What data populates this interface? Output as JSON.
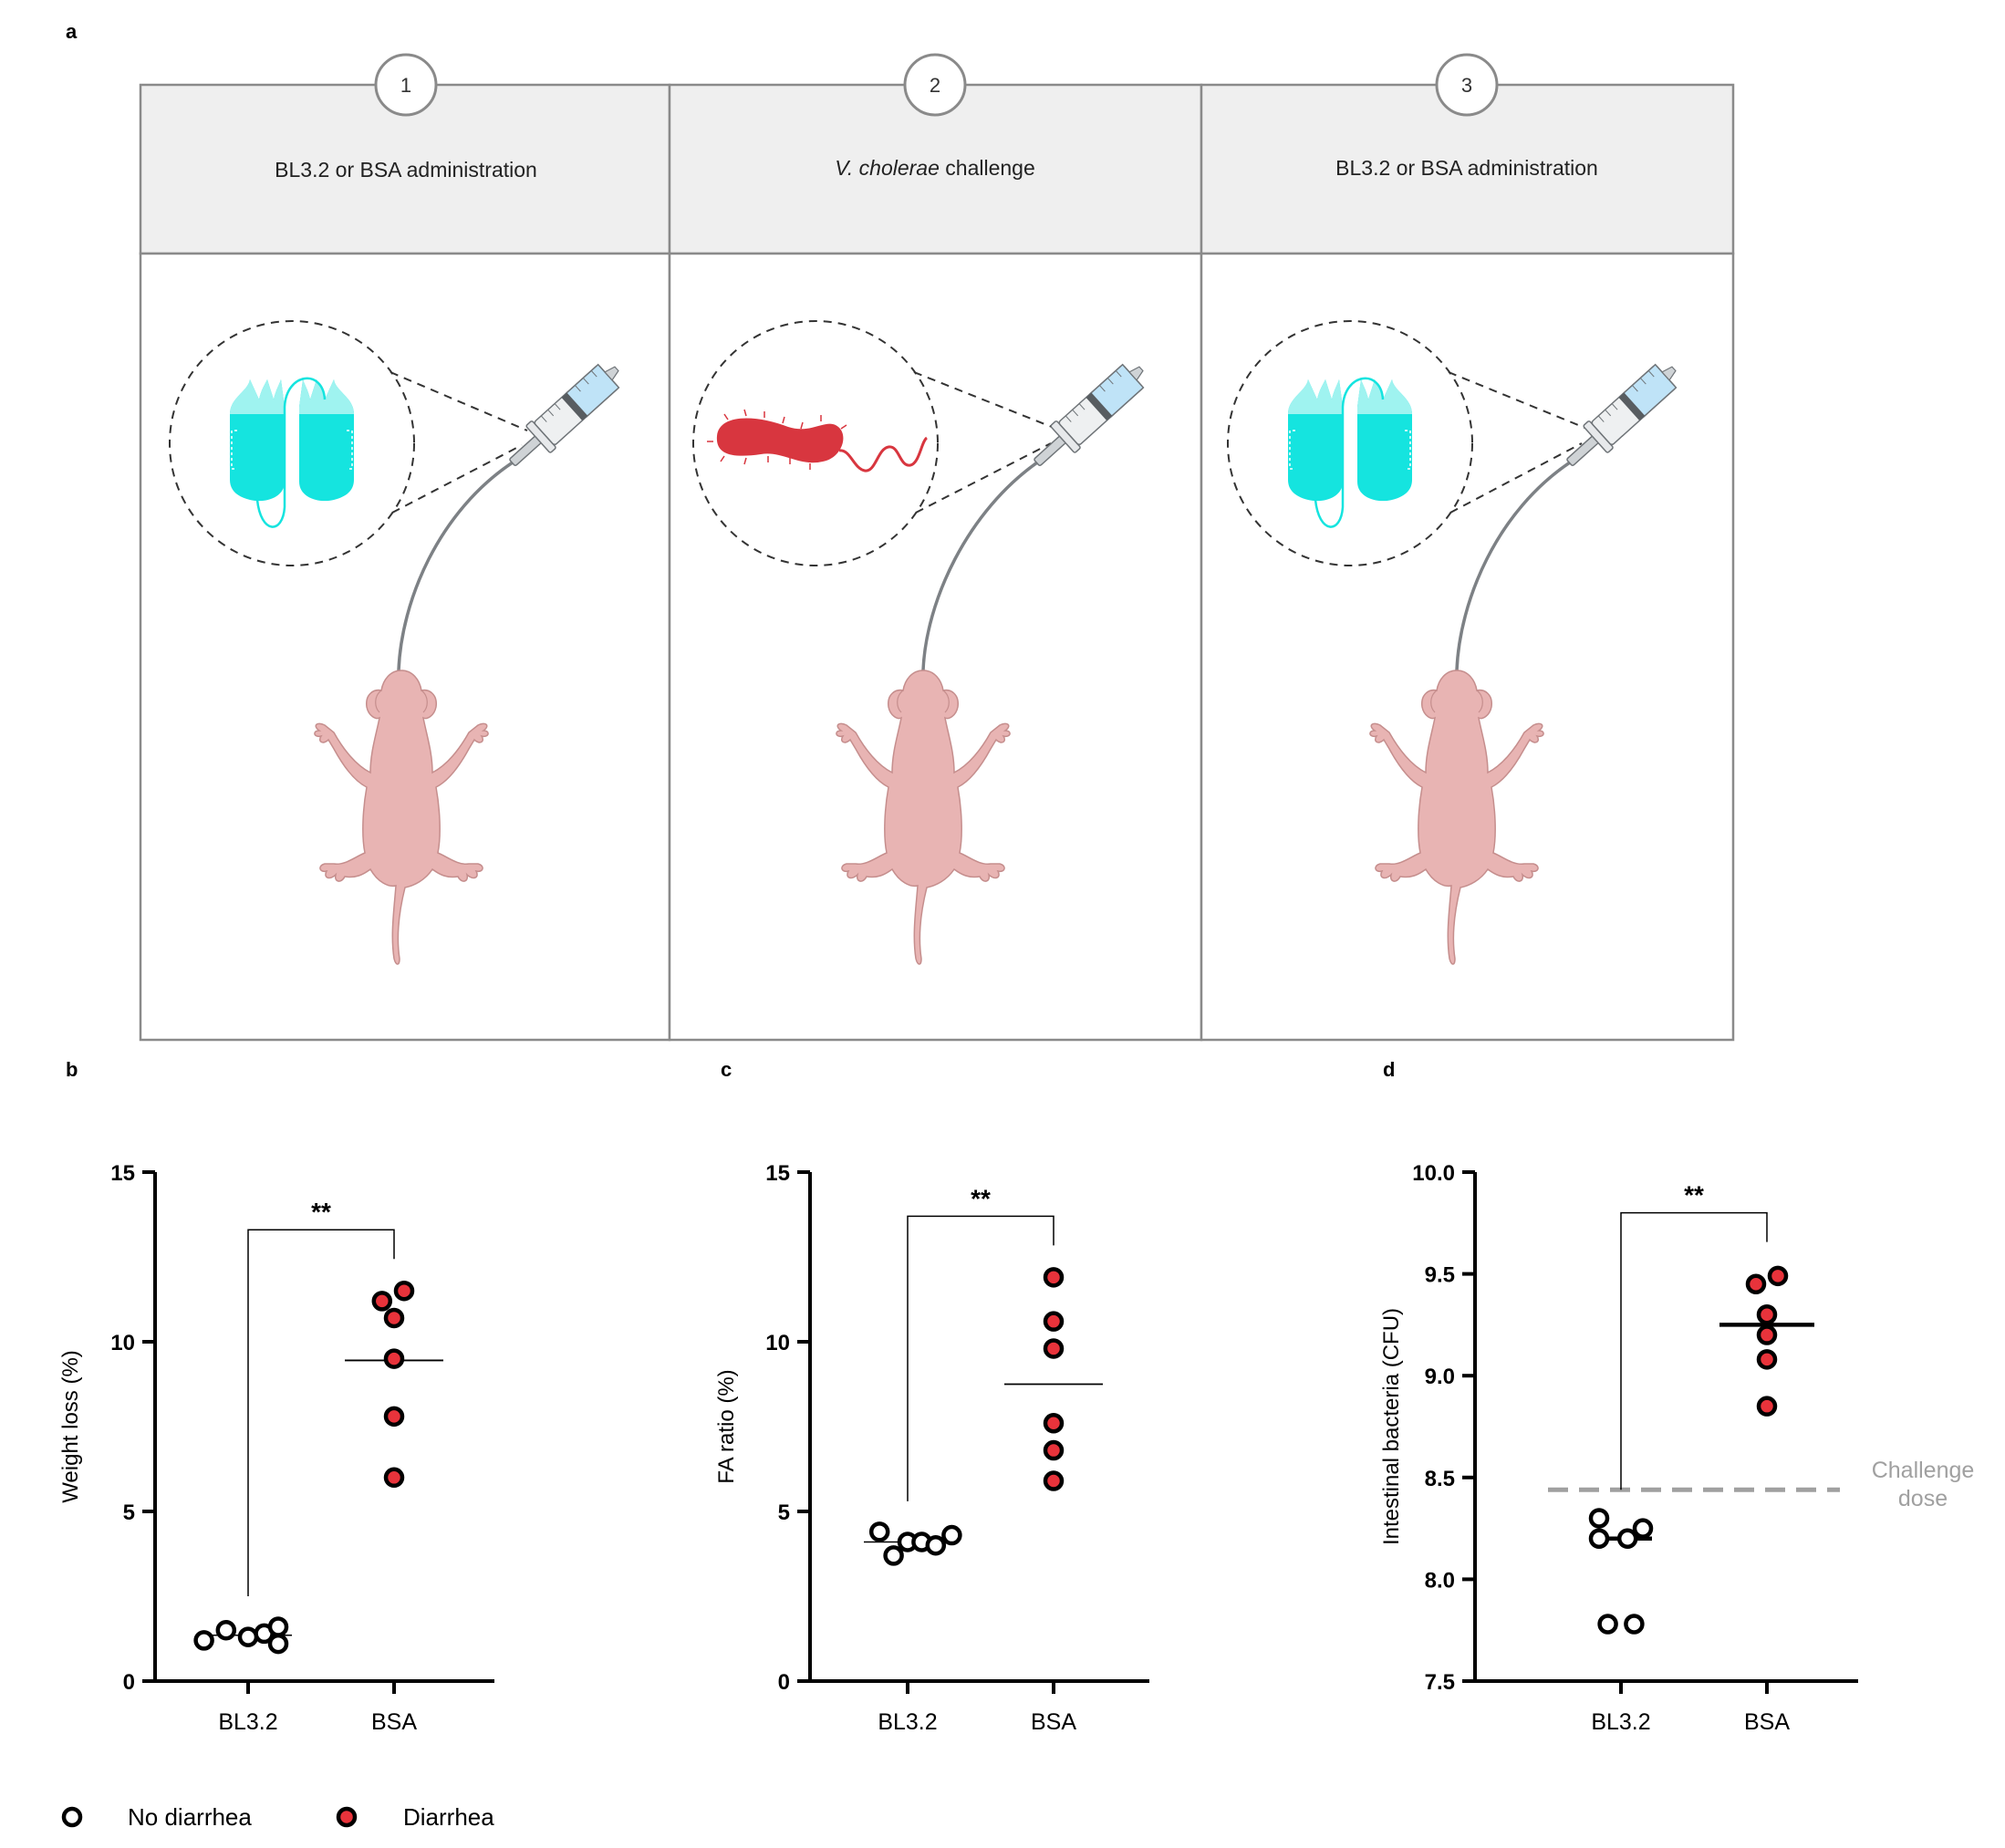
{
  "panel_labels": {
    "a": "a",
    "b": "b",
    "c": "c",
    "d": "d"
  },
  "schematic": {
    "steps": [
      {
        "number": "1",
        "title": "BL3.2 or BSA administration",
        "content": "protein"
      },
      {
        "number": "2",
        "title_italic": "V. cholerae",
        "title_rest": " challenge",
        "content": "bacterium"
      },
      {
        "number": "3",
        "title": "BL3.2 or BSA administration",
        "content": "protein"
      }
    ]
  },
  "colors": {
    "frame": "#8a8a8a",
    "header_bg": "#efefef",
    "protein": "#15e4df",
    "protein_light": "#9ff3f0",
    "bacterium": "#d8363f",
    "mouse": "#e8b4b3",
    "mouse_outline": "#c58e8d",
    "diarrhea_fill": "#e8333b",
    "axis": "#000000",
    "reference_line": "#a0a0a0"
  },
  "chart_data": [
    {
      "id": "b",
      "type": "scatter",
      "ylabel": "Weight loss (%)",
      "ylim": [
        0,
        15
      ],
      "yticks": [
        "0",
        "5",
        "10",
        "15"
      ],
      "categories": [
        "BL3.2",
        "BSA"
      ],
      "groups": [
        {
          "name": "BL3.2",
          "outcome": "No diarrhea",
          "values": [
            1.2,
            1.5,
            1.3,
            1.4,
            1.6,
            1.1
          ]
        },
        {
          "name": "BSA",
          "outcome": "Diarrhea",
          "values": [
            11.5,
            11.2,
            10.7,
            9.5,
            7.8,
            6.0
          ]
        }
      ],
      "means": [
        1.35,
        9.45
      ],
      "significance": "**",
      "bracket_y": 13.3
    },
    {
      "id": "c",
      "type": "scatter",
      "ylabel": "FA ratio (%)",
      "ylim": [
        0,
        15
      ],
      "yticks": [
        "0",
        "5",
        "10",
        "15"
      ],
      "categories": [
        "BL3.2",
        "BSA"
      ],
      "groups": [
        {
          "name": "BL3.2",
          "outcome": "No diarrhea",
          "values": [
            4.4,
            3.7,
            4.1,
            4.1,
            4.0,
            4.3
          ]
        },
        {
          "name": "BSA",
          "outcome": "Diarrhea",
          "values": [
            11.9,
            10.6,
            9.8,
            7.6,
            6.8,
            5.9
          ]
        }
      ],
      "means": [
        4.1,
        8.75
      ],
      "significance": "**",
      "bracket_y": 13.7
    },
    {
      "id": "d",
      "type": "scatter",
      "ylabel": "Intestinal bacteria (CFU)",
      "ylim": [
        7.5,
        10.0
      ],
      "yticks": [
        "7.5",
        "8.0",
        "8.5",
        "9.0",
        "9.5",
        "10.0"
      ],
      "categories": [
        "BL3.2",
        "BSA"
      ],
      "groups": [
        {
          "name": "BL3.2",
          "outcome": "No diarrhea",
          "values": [
            8.2,
            8.25,
            8.3,
            8.2,
            7.78,
            7.78
          ]
        },
        {
          "name": "BSA",
          "outcome": "Diarrhea",
          "values": [
            9.45,
            9.49,
            9.3,
            9.2,
            9.08,
            8.85
          ]
        }
      ],
      "means": [
        8.2,
        9.25
      ],
      "significance": "**",
      "bracket_y": 9.8,
      "reference_line": {
        "value": 8.44,
        "label_line1": "Challenge",
        "label_line2": "dose"
      }
    }
  ],
  "legend": [
    {
      "label": "No diarrhea",
      "marker": "open"
    },
    {
      "label": "Diarrhea",
      "marker": "filled"
    }
  ]
}
